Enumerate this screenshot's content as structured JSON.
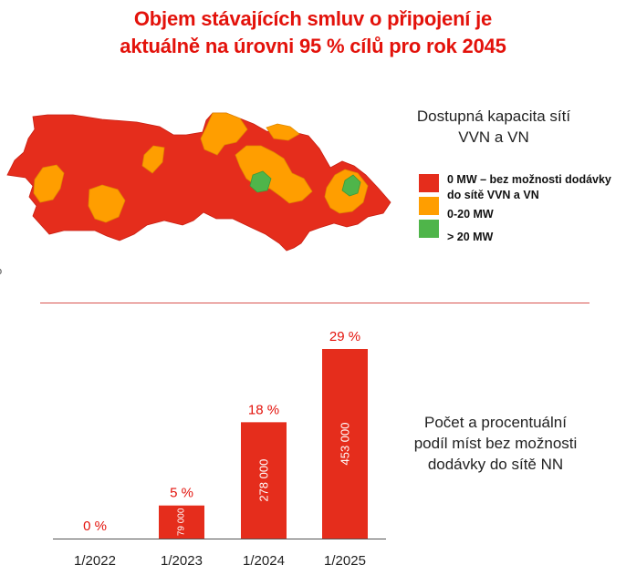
{
  "title": {
    "line1": "Objem stávajících smluv o připojení je",
    "line2": "aktuálně na úrovni 95 % cílů pro rok 2045"
  },
  "colors": {
    "accent": "#e3120b",
    "red": "#e52d1c",
    "orange": "#ff9e00",
    "green": "#4fb54a"
  },
  "map": {
    "legend_title_line1": "Dostupná kapacita sítí",
    "legend_title_line2": "VVN a VN",
    "legend": [
      {
        "label_line1": "0 MW – bez možnosti dodávky",
        "label_line2": "do sítě VVN a VN",
        "color": "#e52d1c"
      },
      {
        "label_line1": "0-20 MW",
        "label_line2": "",
        "color": "#ff9e00"
      },
      {
        "label_line1": "> 20 MW",
        "label_line2": "",
        "color": "#4fb54a"
      }
    ],
    "edge_mark": "o"
  },
  "chart_data": {
    "type": "bar",
    "categories": [
      "1/2022",
      "1/2023",
      "1/2024",
      "1/2025"
    ],
    "values": [
      0,
      79000,
      278000,
      453000
    ],
    "value_labels": [
      "",
      "79 000",
      "278 000",
      "453 000"
    ],
    "percent_labels": [
      "0 %",
      "5 %",
      "18 %",
      "29 %"
    ],
    "percentages": [
      0,
      5,
      18,
      29
    ],
    "caption_line1": "Počet a procentuální",
    "caption_line2": "podíl míst bez možnosti",
    "caption_line3": "dodávky do sítě NN",
    "bar_color": "#e52d1c",
    "label_color": "#e3120b",
    "ylim": [
      0,
      453000
    ],
    "grid": false,
    "title": "",
    "xlabel": "",
    "ylabel": ""
  }
}
